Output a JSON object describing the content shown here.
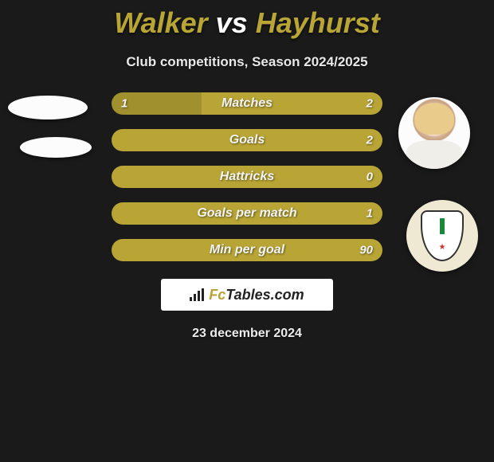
{
  "title_player1": "Walker",
  "title_vs": "vs",
  "title_player2": "Hayhurst",
  "title_color_p1": "#b8a535",
  "title_color_vs": "#ffffff",
  "title_color_p2": "#b8a535",
  "subtitle": "Club competitions, Season 2024/2025",
  "colors": {
    "player1_bar": "#a1902e",
    "player2_bar": "#b8a535",
    "neutral_bar": "#b8a535",
    "background": "#1a1a1a"
  },
  "bars": [
    {
      "label": "Matches",
      "left": "1",
      "right": "2",
      "left_pct": 33.3
    },
    {
      "label": "Goals",
      "left": "",
      "right": "2",
      "left_pct": 0,
      "full": true
    },
    {
      "label": "Hattricks",
      "left": "",
      "right": "0",
      "left_pct": 0,
      "full": true
    },
    {
      "label": "Goals per match",
      "left": "",
      "right": "1",
      "left_pct": 0,
      "full": true
    },
    {
      "label": "Min per goal",
      "left": "",
      "right": "90",
      "left_pct": 0,
      "full": true
    }
  ],
  "brand": {
    "prefix": "Fc",
    "suffix": "Tables.com"
  },
  "date": "23 december 2024"
}
